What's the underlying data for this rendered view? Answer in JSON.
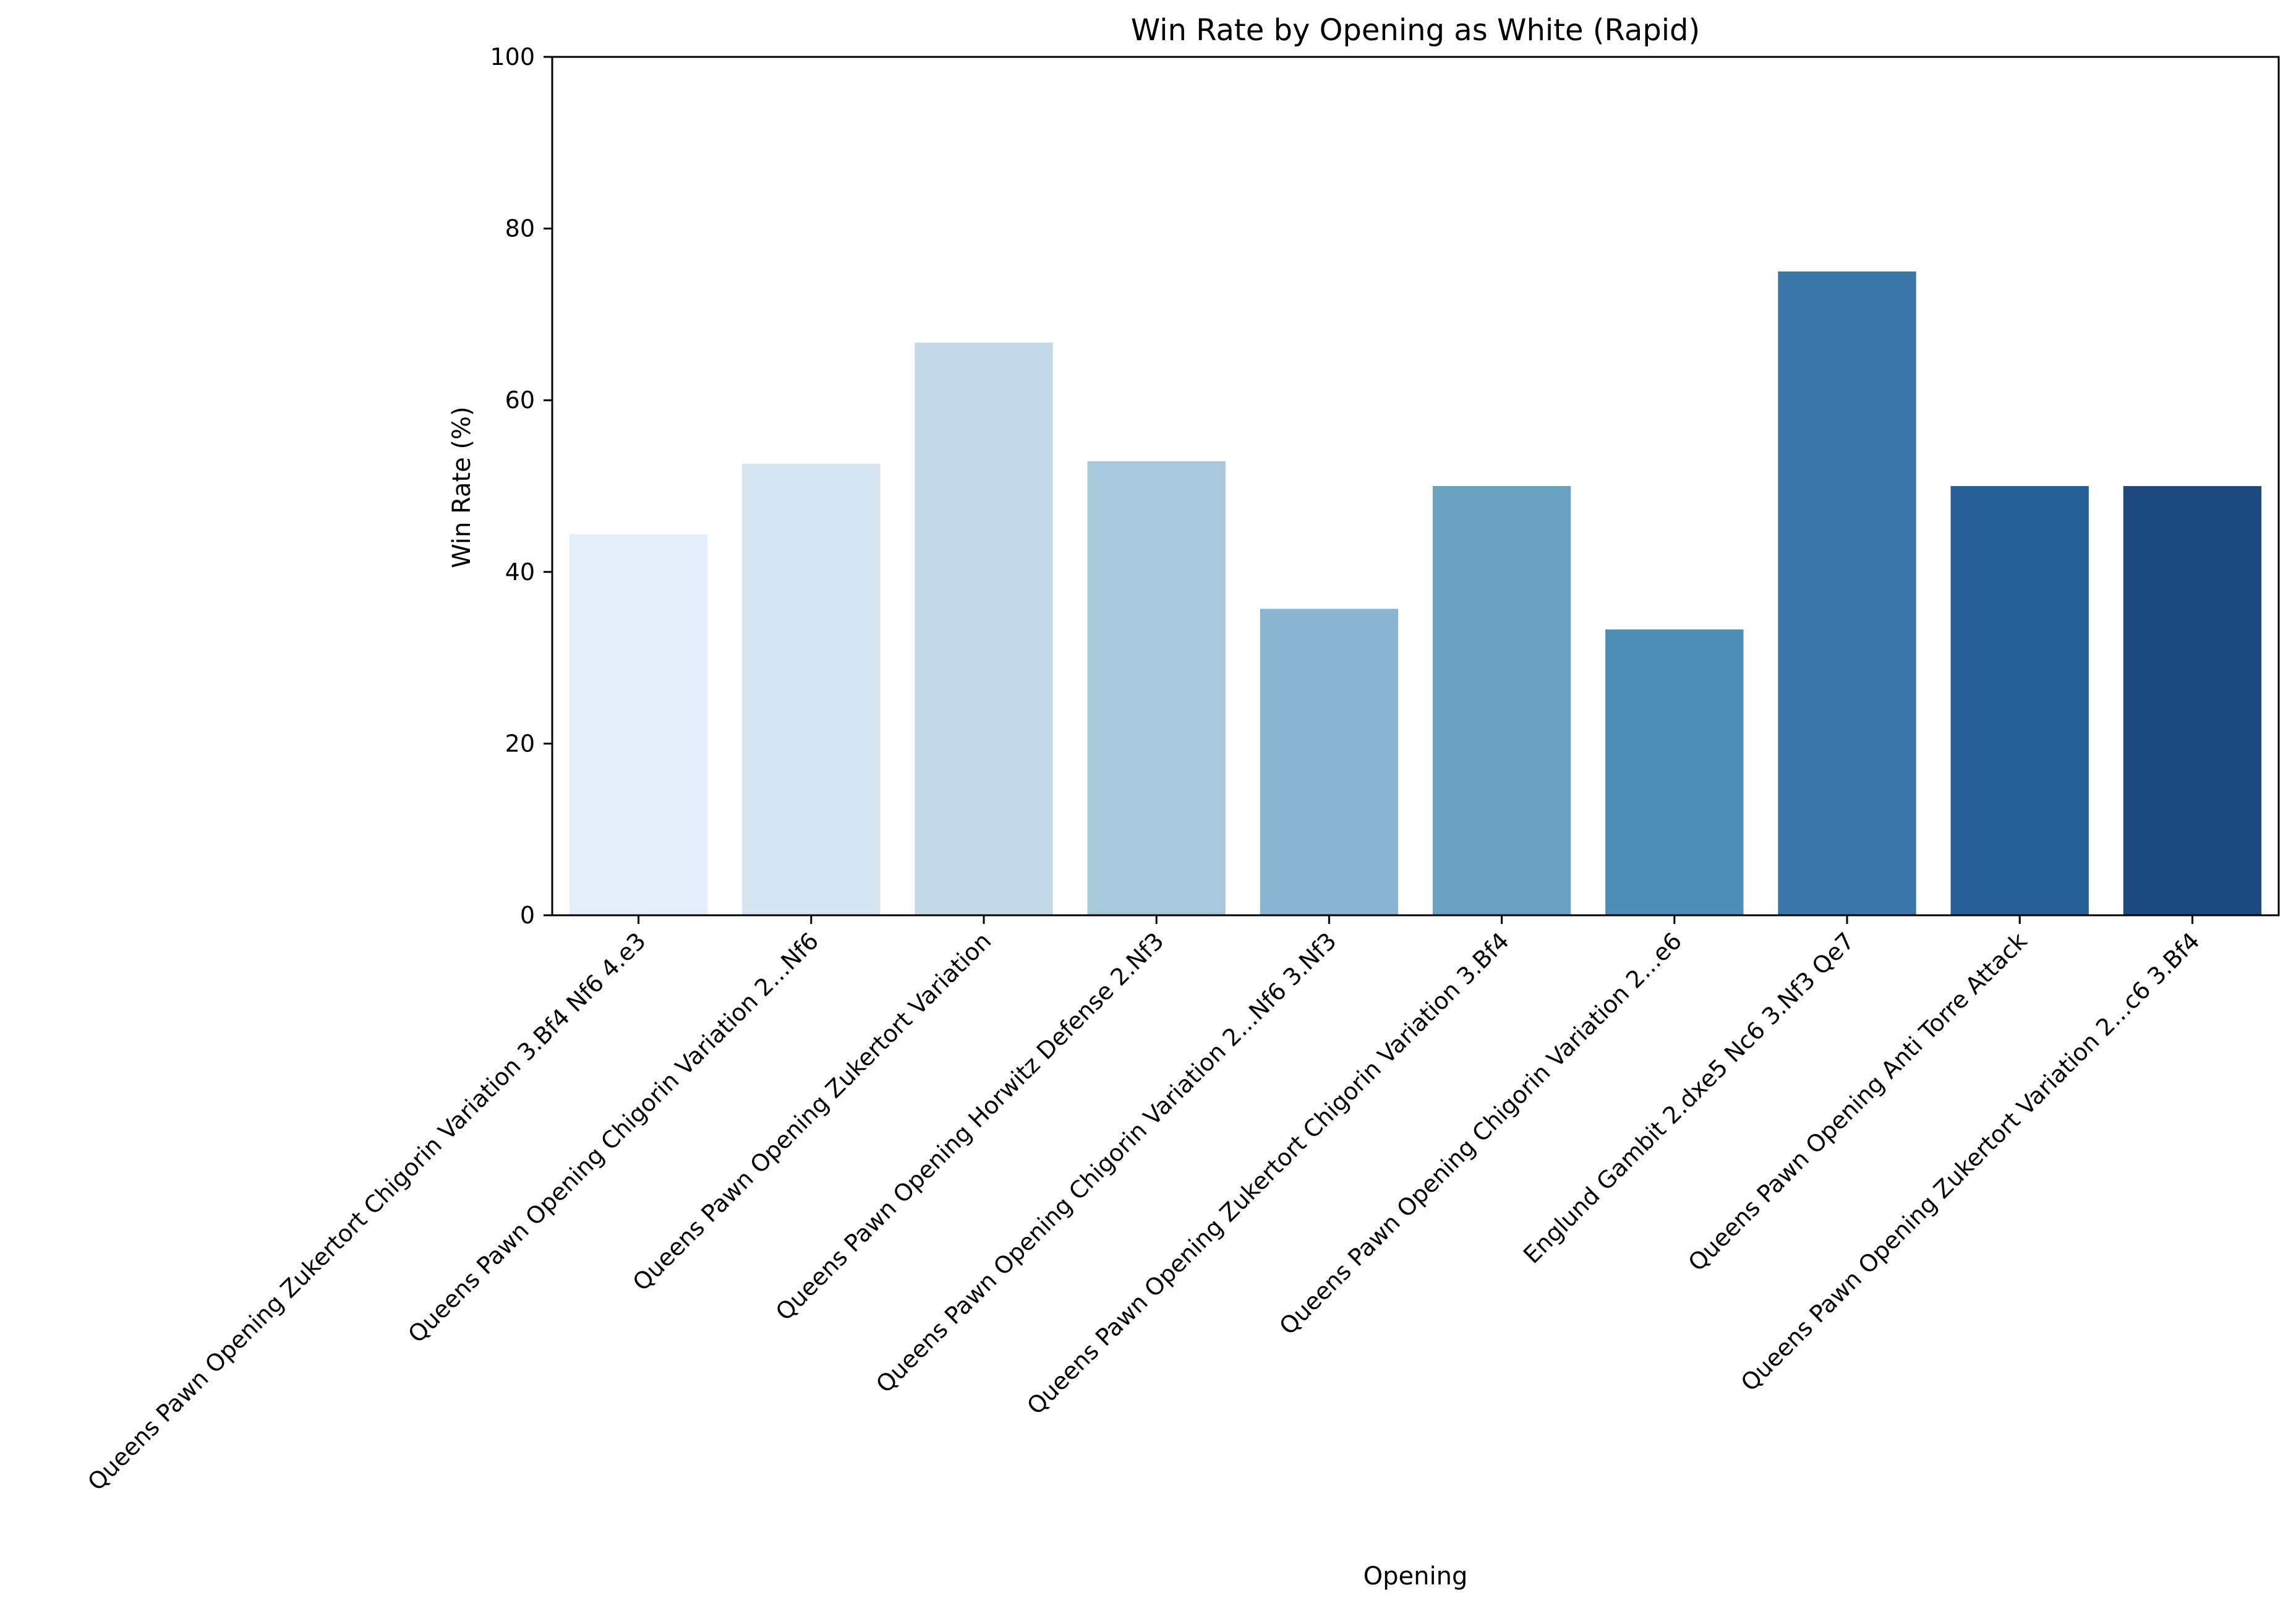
{
  "chart_data": {
    "type": "bar",
    "title": "Win Rate by Opening as White (Rapid)",
    "xlabel": "Opening",
    "ylabel": "Win Rate (%)",
    "ylim": [
      0,
      100
    ],
    "yticks": [
      "0",
      "20",
      "40",
      "60",
      "80",
      "100"
    ],
    "grid": false,
    "categories": [
      "Queens Pawn Opening Zukertort Chigorin Variation 3.Bf4 Nf6 4.e3",
      "Queens Pawn Opening Chigorin Variation 2...Nf6",
      "Queens Pawn Opening Zukertort Variation",
      "Queens Pawn Opening Horwitz Defense 2.Nf3",
      "Queens Pawn Opening Chigorin Variation 2...Nf6 3.Nf3",
      "Queens Pawn Opening Zukertort Chigorin Variation 3.Bf4",
      "Queens Pawn Opening Chigorin Variation 2...e6",
      "Englund Gambit 2.dxe5 Nc6 3.Nf3 Qe7",
      "Queens Pawn Opening Anti Torre Attack",
      "Queens Pawn Opening Zukertort Variation 2...c6 3.Bf4"
    ],
    "values": [
      44.4,
      52.6,
      66.7,
      52.9,
      35.7,
      50.0,
      33.3,
      75.0,
      50.0,
      50.0
    ],
    "colors": [
      "#e3eef8",
      "#d6e5f2",
      "#c3d9e8",
      "#a8c8dc",
      "#89b5d0",
      "#6ba1c3",
      "#4f8db9",
      "#3a76a8",
      "#275f97",
      "#1c4a7e"
    ]
  }
}
